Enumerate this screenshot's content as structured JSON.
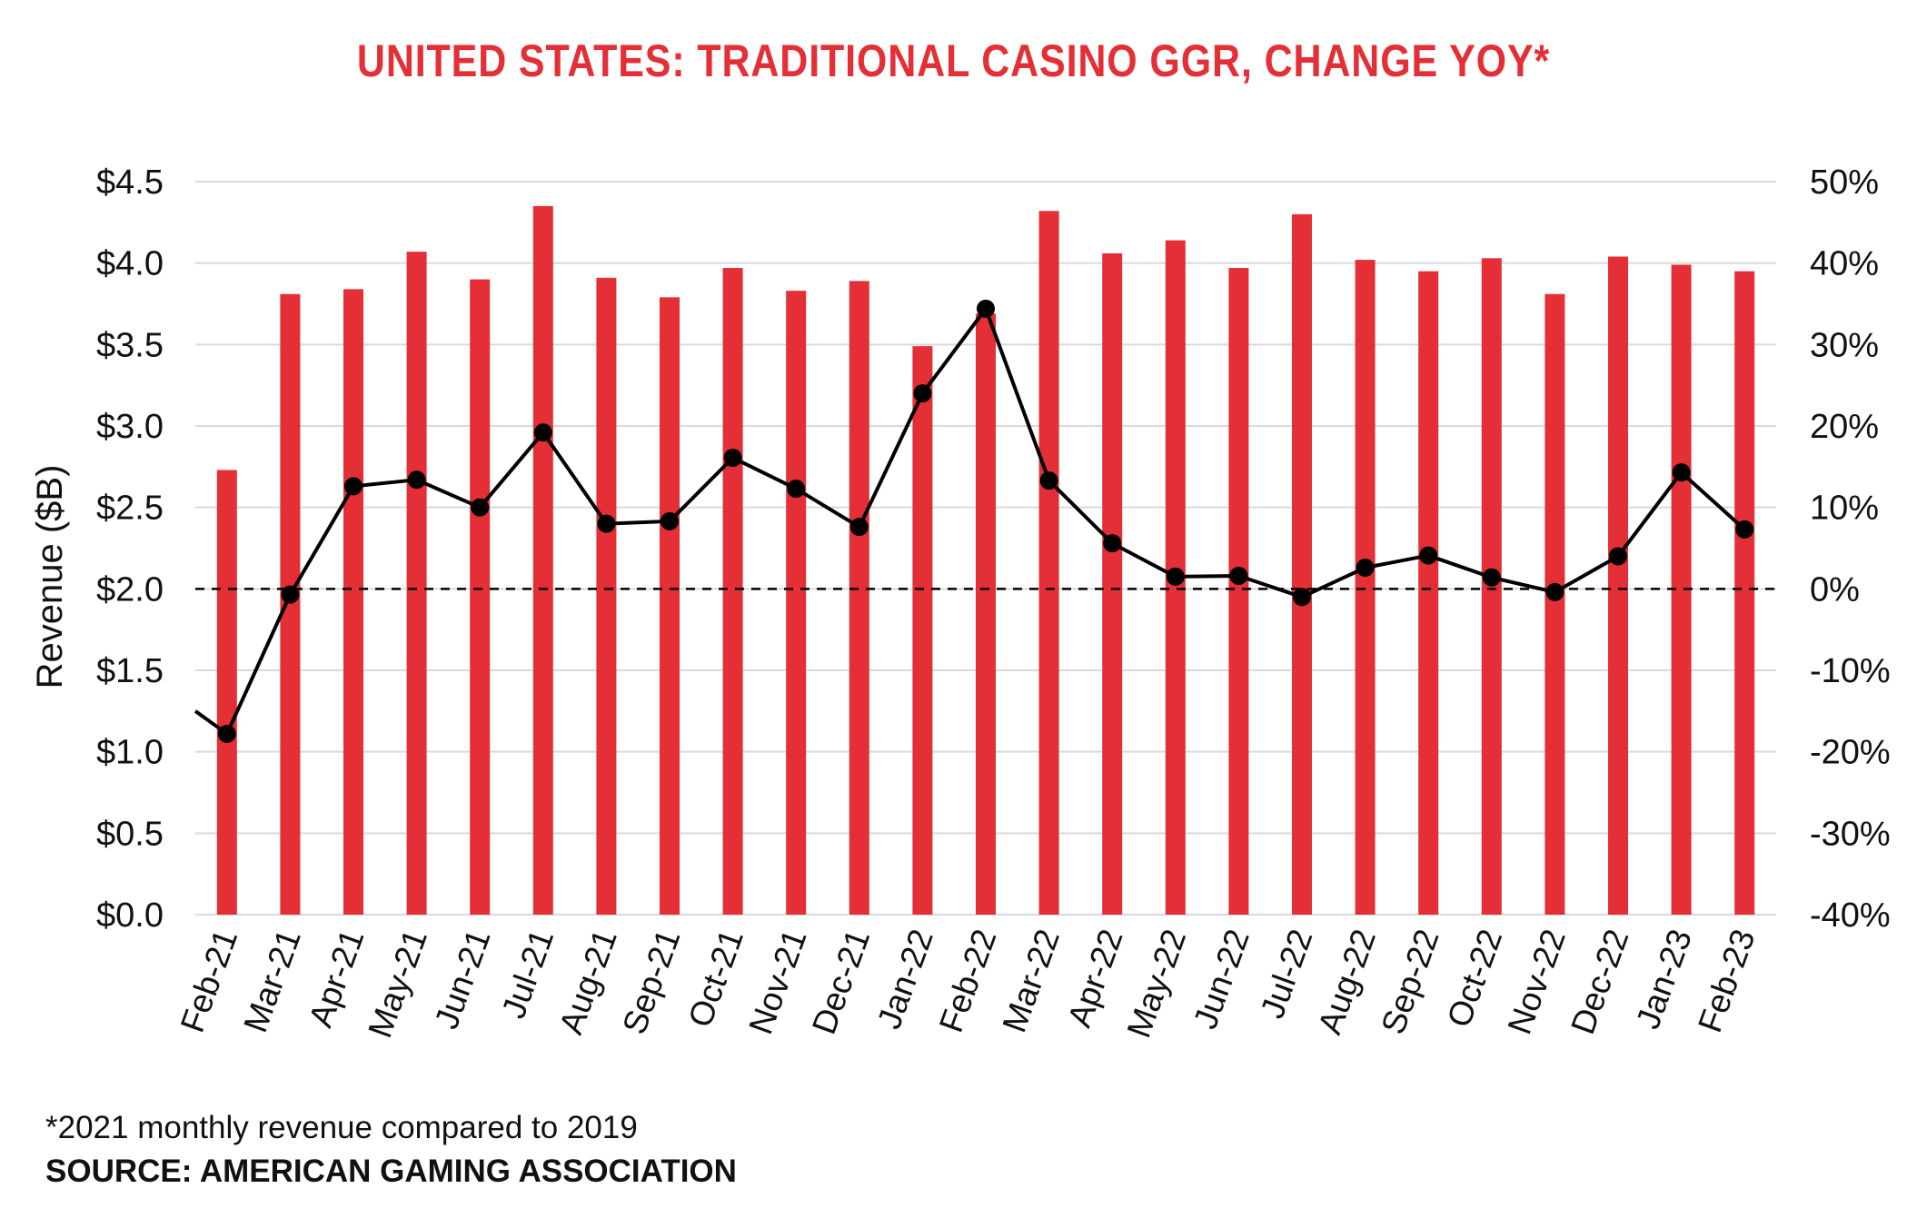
{
  "title": "UNITED STATES: TRADITIONAL CASINO GGR, CHANGE YOY*",
  "footnote": "*2021 monthly revenue compared to 2019",
  "source": "SOURCE: AMERICAN GAMING ASSOCIATION",
  "colors": {
    "title": "#e32f35",
    "bar": "#e32f35",
    "line": "#000000",
    "grid": "#d9d9d9"
  },
  "chart_data": {
    "type": "bar",
    "title": "UNITED STATES: TRADITIONAL CASINO GGR, CHANGE YOY*",
    "ylabel": "Revenue ($B)",
    "ylim": [
      0,
      4.5
    ],
    "y_ticks": [
      "$0.0",
      "$0.5",
      "$1.0",
      "$1.5",
      "$2.0",
      "$2.5",
      "$3.0",
      "$3.5",
      "$4.0",
      "$4.5"
    ],
    "y2lim": [
      -40,
      50
    ],
    "y2_ticks": [
      "-40%",
      "-30%",
      "-20%",
      "-10%",
      "0%",
      "10%",
      "20%",
      "30%",
      "40%",
      "50%"
    ],
    "grid": true,
    "categories": [
      "Feb-21",
      "Mar-21",
      "Apr-21",
      "May-21",
      "Jun-21",
      "Jul-21",
      "Aug-21",
      "Sep-21",
      "Oct-21",
      "Nov-21",
      "Dec-21",
      "Jan-22",
      "Feb-22",
      "Mar-22",
      "Apr-22",
      "May-22",
      "Jun-22",
      "Jul-22",
      "Aug-22",
      "Sep-22",
      "Oct-22",
      "Nov-22",
      "Dec-22",
      "Jan-23",
      "Feb-23"
    ],
    "series": [
      {
        "type": "bar",
        "axis": "left",
        "values": [
          2.73,
          3.81,
          3.84,
          4.07,
          3.9,
          4.35,
          3.91,
          3.79,
          3.97,
          3.83,
          3.89,
          3.49,
          3.69,
          4.32,
          4.06,
          4.14,
          3.97,
          4.3,
          4.02,
          3.95,
          4.03,
          3.81,
          4.04,
          3.99,
          3.95
        ]
      },
      {
        "type": "line",
        "axis": "right",
        "values": [
          -17.8,
          -0.7,
          12.6,
          13.4,
          10.0,
          19.2,
          8.0,
          8.3,
          16.1,
          12.3,
          7.6,
          24.0,
          34.4,
          13.3,
          5.6,
          1.5,
          1.6,
          -1.0,
          2.6,
          4.1,
          1.4,
          -0.4,
          4.0,
          14.3,
          7.3
        ],
        "lead_in_start": -15.0
      }
    ],
    "reference_line": {
      "axis": "right",
      "value": 0,
      "style": "dashed"
    }
  }
}
